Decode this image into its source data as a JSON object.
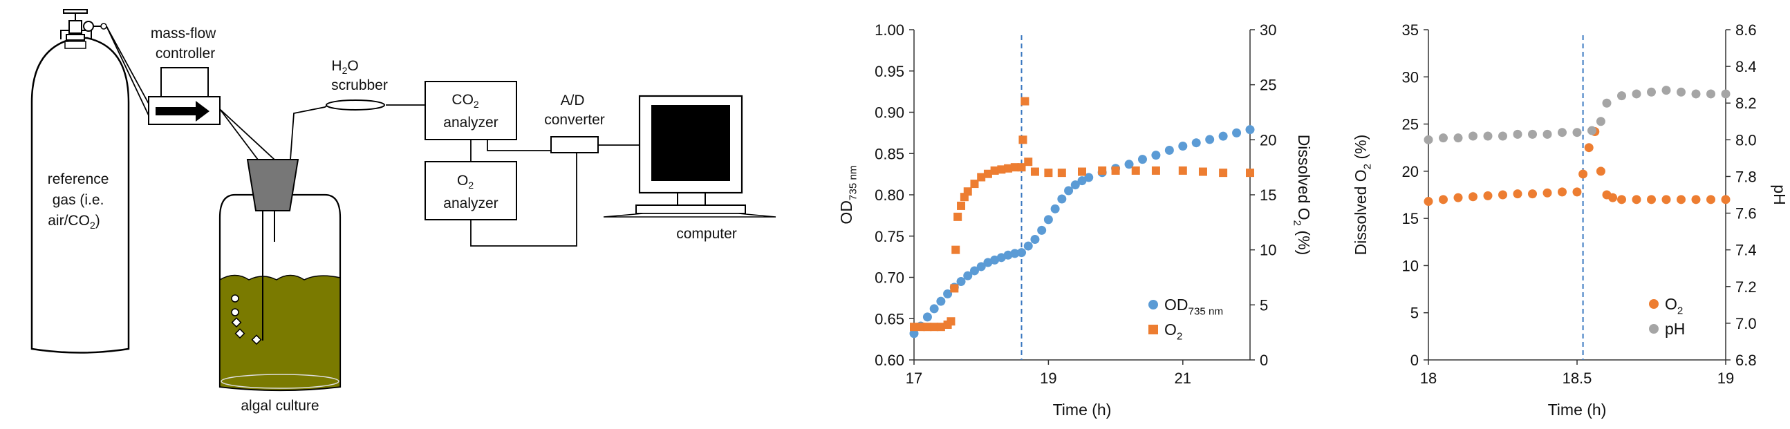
{
  "diagram": {
    "labels": {
      "reference_gas": [
        "reference",
        "gas (i.e.",
        "air/CO",
        "2",
        ")"
      ],
      "mass_flow": [
        "mass-flow",
        "controller"
      ],
      "h2o": [
        "H",
        "2",
        "O",
        "scrubber"
      ],
      "co2": [
        "CO",
        "2",
        "analyzer"
      ],
      "o2": [
        "O",
        "2",
        "analyzer"
      ],
      "adc": [
        "A/D",
        "converter"
      ],
      "computer": "computer",
      "algal_culture": "algal culture"
    },
    "colors": {
      "culture": "#7a7a00",
      "cone": "#777777",
      "screen": "#000000"
    }
  },
  "chart_data": [
    {
      "type": "scatter",
      "xlabel": "Time (h)",
      "ylabel": [
        "OD",
        "735 nm"
      ],
      "y2label": [
        "Dissolved O",
        "2",
        " (%)"
      ],
      "xlim": [
        17,
        22
      ],
      "ylim": [
        0.6,
        1.0
      ],
      "y2lim": [
        0,
        30
      ],
      "xticks": [
        "17",
        "19",
        "21"
      ],
      "yticks": [
        "0.60",
        "0.65",
        "0.70",
        "0.75",
        "0.80",
        "0.85",
        "0.90",
        "0.95",
        "1.00"
      ],
      "y2ticks": [
        "0",
        "5",
        "10",
        "15",
        "20",
        "25",
        "30"
      ],
      "vline_x": 18.6,
      "legend_position": "bottom-right",
      "series": [
        {
          "name": [
            "OD",
            "735 nm"
          ],
          "axis": "left",
          "marker": "circle",
          "color": "#5b9bd5",
          "x": [
            17.0,
            17.1,
            17.2,
            17.3,
            17.4,
            17.5,
            17.6,
            17.7,
            17.8,
            17.9,
            18.0,
            18.1,
            18.2,
            18.3,
            18.4,
            18.5,
            18.6,
            18.7,
            18.8,
            18.9,
            19.0,
            19.1,
            19.2,
            19.3,
            19.4,
            19.5,
            19.6,
            19.8,
            20.0,
            20.2,
            20.4,
            20.6,
            20.8,
            21.0,
            21.2,
            21.4,
            21.6,
            21.8,
            22.0
          ],
          "y": [
            0.632,
            0.641,
            0.652,
            0.662,
            0.671,
            0.68,
            0.688,
            0.695,
            0.702,
            0.708,
            0.713,
            0.718,
            0.721,
            0.724,
            0.727,
            0.729,
            0.73,
            0.738,
            0.746,
            0.757,
            0.77,
            0.783,
            0.795,
            0.805,
            0.812,
            0.817,
            0.821,
            0.827,
            0.832,
            0.837,
            0.843,
            0.848,
            0.854,
            0.859,
            0.863,
            0.867,
            0.871,
            0.875,
            0.879
          ]
        },
        {
          "name": [
            "O",
            "2"
          ],
          "axis": "right",
          "marker": "square",
          "color": "#ed7d31",
          "x": [
            17.0,
            17.1,
            17.2,
            17.3,
            17.4,
            17.5,
            17.55,
            17.6,
            17.62,
            17.65,
            17.7,
            17.75,
            17.8,
            17.9,
            18.0,
            18.1,
            18.2,
            18.3,
            18.4,
            18.5,
            18.6,
            18.62,
            18.65,
            18.7,
            18.8,
            19.0,
            19.2,
            19.5,
            19.8,
            20.0,
            20.3,
            20.6,
            21.0,
            21.3,
            21.6,
            22.0
          ],
          "y": [
            3.0,
            3.0,
            3.0,
            3.0,
            3.0,
            3.2,
            3.5,
            6.5,
            10.0,
            13.0,
            14.0,
            14.8,
            15.3,
            16.0,
            16.6,
            16.9,
            17.2,
            17.3,
            17.4,
            17.5,
            17.5,
            20.0,
            23.5,
            18.0,
            17.1,
            17.0,
            17.0,
            17.1,
            17.2,
            17.2,
            17.2,
            17.2,
            17.2,
            17.1,
            17.0,
            17.0
          ]
        }
      ]
    },
    {
      "type": "scatter",
      "xlabel": "Time (h)",
      "ylabel": [
        "Dissolved O",
        "2",
        " (%)"
      ],
      "y2label": [
        "pH"
      ],
      "xlim": [
        18,
        19
      ],
      "ylim": [
        0,
        35
      ],
      "y2lim": [
        6.8,
        8.6
      ],
      "xticks": [
        "18",
        "18.5",
        "19"
      ],
      "yticks": [
        "0",
        "5",
        "10",
        "15",
        "20",
        "25",
        "30",
        "35"
      ],
      "y2ticks": [
        "6.8",
        "7.0",
        "7.2",
        "7.4",
        "7.6",
        "7.8",
        "8.0",
        "8.2",
        "8.4",
        "8.6"
      ],
      "vline_x": 18.52,
      "legend_position": "bottom-right",
      "series": [
        {
          "name": [
            "O",
            "2"
          ],
          "axis": "left",
          "marker": "circle",
          "color": "#ed7d31",
          "x": [
            18.0,
            18.05,
            18.1,
            18.15,
            18.2,
            18.25,
            18.3,
            18.35,
            18.4,
            18.45,
            18.5,
            18.52,
            18.54,
            18.56,
            18.58,
            18.6,
            18.62,
            18.65,
            18.7,
            18.75,
            18.8,
            18.85,
            18.9,
            18.95,
            19.0
          ],
          "y": [
            16.8,
            17.0,
            17.2,
            17.3,
            17.4,
            17.5,
            17.6,
            17.6,
            17.7,
            17.8,
            17.8,
            19.7,
            22.5,
            24.2,
            20.0,
            17.5,
            17.2,
            17.0,
            17.0,
            17.0,
            17.0,
            17.0,
            17.0,
            17.0,
            17.0
          ]
        },
        {
          "name": [
            "pH"
          ],
          "axis": "right",
          "marker": "circle",
          "color": "#a5a5a5",
          "x": [
            18.0,
            18.05,
            18.1,
            18.15,
            18.2,
            18.25,
            18.3,
            18.35,
            18.4,
            18.45,
            18.5,
            18.55,
            18.58,
            18.6,
            18.65,
            18.7,
            18.75,
            18.8,
            18.85,
            18.9,
            18.95,
            19.0
          ],
          "y": [
            8.0,
            8.01,
            8.01,
            8.02,
            8.02,
            8.02,
            8.03,
            8.03,
            8.03,
            8.04,
            8.04,
            8.05,
            8.1,
            8.2,
            8.24,
            8.25,
            8.26,
            8.27,
            8.26,
            8.25,
            8.25,
            8.25
          ]
        }
      ]
    }
  ]
}
